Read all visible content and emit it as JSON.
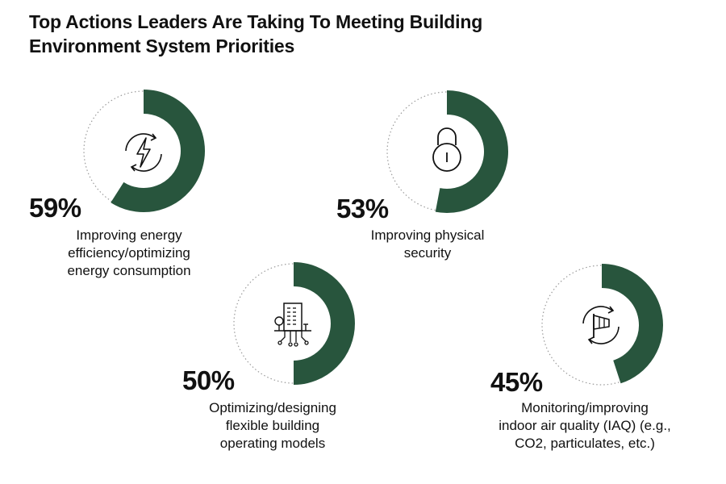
{
  "title_lines": [
    "Top Actions Leaders Are Taking To Meeting Building",
    "Environment System Priorities"
  ],
  "colors": {
    "accent": "#28553d",
    "track": "#9a9a9a",
    "text": "#111111"
  },
  "chart_data": {
    "type": "pie",
    "title": "Top Actions Leaders Are Taking To Meeting Building Environment System Priorities",
    "categories": [
      "Improving energy efficiency/optimizing energy consumption",
      "Improving physical security",
      "Optimizing/designing flexible building operating models",
      "Monitoring/improving indoor air quality (IAQ) (e.g., CO2, particulates, etc.)"
    ],
    "values": [
      59,
      53,
      50,
      45
    ],
    "unit": "%",
    "items": [
      {
        "value": 59,
        "value_label": "59%",
        "label_lines": [
          "Improving energy",
          "efficiency/optimizing",
          "energy consumption"
        ],
        "icon": "lightning-cycle-icon"
      },
      {
        "value": 53,
        "value_label": "53%",
        "label_lines": [
          "Improving physical",
          "security"
        ],
        "icon": "padlock-icon"
      },
      {
        "value": 50,
        "value_label": "50%",
        "label_lines": [
          "Optimizing/designing",
          "flexible building",
          "operating models"
        ],
        "icon": "smart-building-icon"
      },
      {
        "value": 45,
        "value_label": "45%",
        "label_lines": [
          "Monitoring/improving",
          "indoor air quality (IAQ) (e.g.,",
          "CO2, particulates, etc.)"
        ],
        "icon": "windsock-cycle-icon"
      }
    ]
  }
}
